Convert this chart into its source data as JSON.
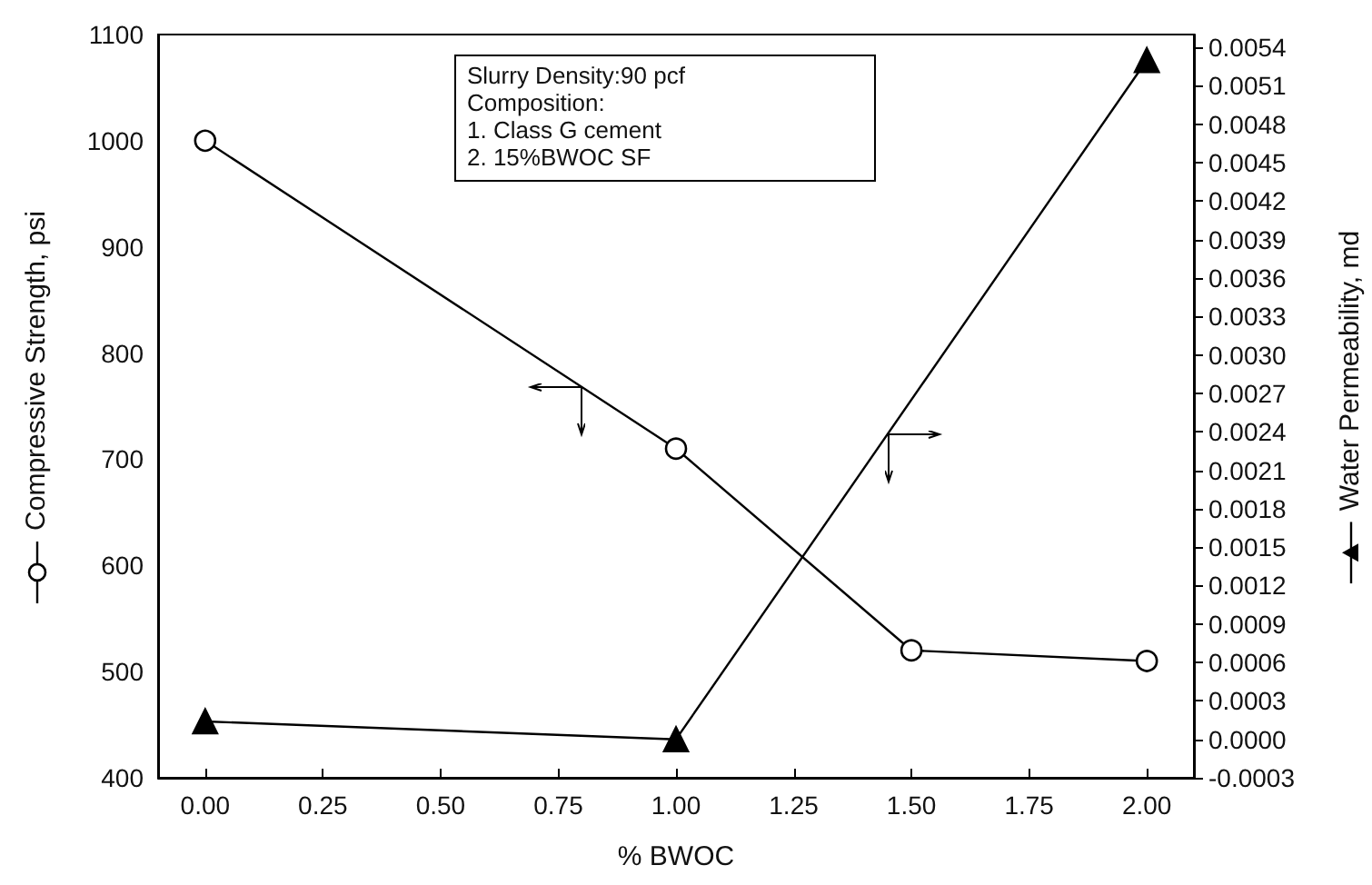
{
  "chart_data": {
    "type": "line",
    "xlabel": "% BWOC",
    "ylabel": "Compressive Strength, psi",
    "y2label": "Water Permeability, md",
    "x": [
      0,
      1,
      1.5,
      2
    ],
    "series": [
      {
        "color": "#000000",
        "marker": "circle",
        "values": [
          1000,
          710,
          520,
          510
        ]
      },
      {
        "color": "#000000",
        "marker": "triangle",
        "axis": "y2",
        "values": [
          0.00014,
          0.0,
          null,
          0.0053
        ]
      }
    ],
    "xlim": [
      -0.1,
      2.1
    ],
    "xticks": [
      {
        "value": 0,
        "label": "0.00"
      },
      {
        "value": 0.25,
        "label": "0.25"
      },
      {
        "value": 0.5,
        "label": "0.50"
      },
      {
        "value": 0.75,
        "label": "0.75"
      },
      {
        "value": 1,
        "label": "1.00"
      },
      {
        "value": 1.25,
        "label": "1.25"
      },
      {
        "value": 1.5,
        "label": "1.50"
      },
      {
        "value": 1.75,
        "label": "1.75"
      },
      {
        "value": 2,
        "label": "2.00"
      }
    ],
    "ylim": [
      400,
      1100
    ],
    "yticks": [
      400,
      500,
      600,
      700,
      800,
      900,
      1000,
      1100
    ],
    "y2lim": [
      -0.0003,
      0.0055
    ],
    "y2ticks": [
      {
        "value": -0.0003,
        "label": "-0.0003"
      },
      {
        "value": 0,
        "label": "0.0000"
      },
      {
        "value": 0.0003,
        "label": "0.0003"
      },
      {
        "value": 0.0006,
        "label": "0.0006"
      },
      {
        "value": 0.0009,
        "label": "0.0009"
      },
      {
        "value": 0.0012,
        "label": "0.0012"
      },
      {
        "value": 0.0015,
        "label": "0.0015"
      },
      {
        "value": 0.0018,
        "label": "0.0018"
      },
      {
        "value": 0.0021,
        "label": "0.0021"
      },
      {
        "value": 0.0024,
        "label": "0.0024"
      },
      {
        "value": 0.0027,
        "label": "0.0027"
      },
      {
        "value": 0.003,
        "label": "0.0030"
      },
      {
        "value": 0.0033,
        "label": "0.0033"
      },
      {
        "value": 0.0036,
        "label": "0.0036"
      },
      {
        "value": 0.0039,
        "label": "0.0039"
      },
      {
        "value": 0.0042,
        "label": "0.0042"
      },
      {
        "value": 0.0045,
        "label": "0.0045"
      },
      {
        "value": 0.0048,
        "label": "0.0048"
      },
      {
        "value": 0.0051,
        "label": "0.0051"
      },
      {
        "value": 0.0054,
        "label": "0.0054"
      }
    ],
    "annotations": [
      "Slurry Density:90 pcf",
      "Composition:",
      "1. Class G cement",
      "2. 15%BWOC SF"
    ],
    "grid": false
  }
}
